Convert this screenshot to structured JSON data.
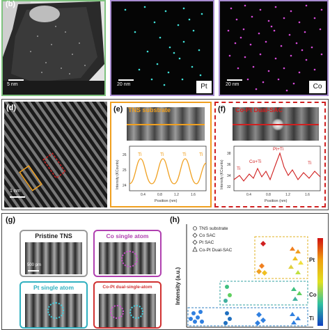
{
  "panel_b": {
    "letter": "(b)",
    "scale_left": "5 nm",
    "scale_mid": "20 nm",
    "scale_right": "20 nm",
    "label_pt": "Pt",
    "label_co": "Co",
    "colors": {
      "pt": "#3fe0d8",
      "co": "#d44ad8",
      "frame_left": "#7ec27e",
      "frame_mid": "#a78bd0",
      "frame_right": "#a78bd0"
    }
  },
  "panel_d": {
    "letter": "(d)",
    "scale": "1 nm"
  },
  "panel_e": {
    "letter": "(e)",
    "title": "TNS substrate",
    "ylabel": "Intensity (KCounts)",
    "xlabel": "Position (nm)",
    "peak_label": "Ti",
    "yticks": [
      "24",
      "25",
      "26"
    ],
    "xticks": [
      "0.4",
      "0.8",
      "1.2",
      "1.6"
    ],
    "color": "#f0a020"
  },
  "panel_f": {
    "letter": "(f)",
    "title": "Co-Pt Dual-SAC",
    "ylabel": "Intensity (KCounts)",
    "xlabel": "Position (nm)",
    "labels": [
      "Ti",
      "Co+Ti",
      "Pt+Ti",
      "Ti"
    ],
    "yticks": [
      "32",
      "34",
      "36",
      "38"
    ],
    "xticks": [
      "0.4",
      "0.8",
      "1.2",
      "1.6"
    ],
    "color": "#d02020"
  },
  "panel_g": {
    "letter": "(g)",
    "tiles": [
      "Pristine TNS",
      "Co single atom",
      "Pt single atom",
      "Co-Pt dual-single-atom"
    ],
    "scale": "500 pm",
    "tile_colors": [
      "#999999",
      "#b040b0",
      "#30b0c0",
      "#d03030"
    ]
  },
  "panel_h": {
    "letter": "(h)",
    "ylabel": "Intensity (a.u.)",
    "legend": [
      "TNS substrate",
      "Co SAC",
      "Pt SAC",
      "Co-Pt Dual-SAC"
    ],
    "row_labels": [
      "Pt",
      "Co",
      "Ti"
    ]
  }
}
